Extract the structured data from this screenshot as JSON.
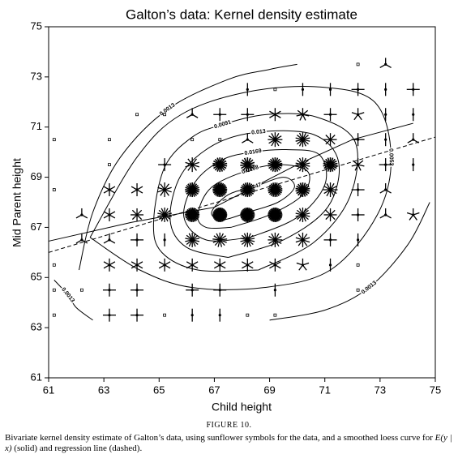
{
  "chart_data": {
    "type": "sunflower",
    "title": "Galton’s data: Kernel density estimate",
    "xlabel": "Child height",
    "ylabel": "Mid Parent height",
    "xlim": [
      61,
      75
    ],
    "xticks": [
      61,
      63,
      65,
      67,
      69,
      71,
      73,
      75
    ],
    "ylim": [
      61,
      75
    ],
    "yticks": [
      61,
      63,
      65,
      67,
      69,
      71,
      73,
      75
    ],
    "color": "#000000",
    "points": [
      {
        "x": 72.2,
        "y": 73.5,
        "n": 1
      },
      {
        "x": 73.2,
        "y": 73.5,
        "n": 3
      },
      {
        "x": 68.2,
        "y": 72.5,
        "n": 2
      },
      {
        "x": 69.2,
        "y": 72.5,
        "n": 1
      },
      {
        "x": 70.2,
        "y": 72.5,
        "n": 2
      },
      {
        "x": 71.2,
        "y": 72.5,
        "n": 2
      },
      {
        "x": 72.2,
        "y": 72.5,
        "n": 4
      },
      {
        "x": 73.2,
        "y": 72.5,
        "n": 2
      },
      {
        "x": 74.2,
        "y": 72.5,
        "n": 4
      },
      {
        "x": 64.2,
        "y": 71.5,
        "n": 1
      },
      {
        "x": 65.2,
        "y": 71.5,
        "n": 1
      },
      {
        "x": 66.2,
        "y": 71.5,
        "n": 3
      },
      {
        "x": 67.2,
        "y": 71.5,
        "n": 4
      },
      {
        "x": 68.2,
        "y": 71.5,
        "n": 4
      },
      {
        "x": 69.2,
        "y": 71.5,
        "n": 6
      },
      {
        "x": 70.2,
        "y": 71.5,
        "n": 7
      },
      {
        "x": 71.2,
        "y": 71.5,
        "n": 4
      },
      {
        "x": 72.2,
        "y": 71.5,
        "n": 5
      },
      {
        "x": 73.2,
        "y": 71.5,
        "n": 2
      },
      {
        "x": 74.2,
        "y": 71.5,
        "n": 2
      },
      {
        "x": 61.2,
        "y": 70.5,
        "n": 1
      },
      {
        "x": 63.2,
        "y": 70.5,
        "n": 1
      },
      {
        "x": 66.2,
        "y": 70.5,
        "n": 1
      },
      {
        "x": 67.2,
        "y": 70.5,
        "n": 1
      },
      {
        "x": 68.2,
        "y": 70.5,
        "n": 3
      },
      {
        "x": 69.2,
        "y": 70.5,
        "n": 12
      },
      {
        "x": 70.2,
        "y": 70.5,
        "n": 14
      },
      {
        "x": 71.2,
        "y": 70.5,
        "n": 8
      },
      {
        "x": 72.2,
        "y": 70.5,
        "n": 4
      },
      {
        "x": 73.2,
        "y": 70.5,
        "n": 2
      },
      {
        "x": 74.2,
        "y": 70.5,
        "n": 3
      },
      {
        "x": 63.2,
        "y": 69.5,
        "n": 1
      },
      {
        "x": 65.2,
        "y": 69.5,
        "n": 4
      },
      {
        "x": 66.2,
        "y": 69.5,
        "n": 10
      },
      {
        "x": 67.2,
        "y": 69.5,
        "n": 18
      },
      {
        "x": 68.2,
        "y": 69.5,
        "n": 15
      },
      {
        "x": 69.2,
        "y": 69.5,
        "n": 18
      },
      {
        "x": 70.2,
        "y": 69.5,
        "n": 14
      },
      {
        "x": 71.2,
        "y": 69.5,
        "n": 18
      },
      {
        "x": 72.2,
        "y": 69.5,
        "n": 7
      },
      {
        "x": 73.2,
        "y": 69.5,
        "n": 4
      },
      {
        "x": 74.2,
        "y": 69.5,
        "n": 2
      },
      {
        "x": 61.2,
        "y": 68.5,
        "n": 1
      },
      {
        "x": 63.2,
        "y": 68.5,
        "n": 6
      },
      {
        "x": 64.2,
        "y": 68.5,
        "n": 6
      },
      {
        "x": 65.2,
        "y": 68.5,
        "n": 10
      },
      {
        "x": 66.2,
        "y": 68.5,
        "n": 20
      },
      {
        "x": 67.2,
        "y": 68.5,
        "n": 25
      },
      {
        "x": 68.2,
        "y": 68.5,
        "n": 20
      },
      {
        "x": 69.2,
        "y": 68.5,
        "n": 22
      },
      {
        "x": 70.2,
        "y": 68.5,
        "n": 18
      },
      {
        "x": 71.2,
        "y": 68.5,
        "n": 12
      },
      {
        "x": 72.2,
        "y": 68.5,
        "n": 4
      },
      {
        "x": 73.2,
        "y": 68.5,
        "n": 3
      },
      {
        "x": 62.2,
        "y": 67.5,
        "n": 3
      },
      {
        "x": 63.2,
        "y": 67.5,
        "n": 6
      },
      {
        "x": 64.2,
        "y": 67.5,
        "n": 8
      },
      {
        "x": 65.2,
        "y": 67.5,
        "n": 14
      },
      {
        "x": 66.2,
        "y": 67.5,
        "n": 25
      },
      {
        "x": 67.2,
        "y": 67.5,
        "n": 30
      },
      {
        "x": 68.2,
        "y": 67.5,
        "n": 28
      },
      {
        "x": 69.2,
        "y": 67.5,
        "n": 28
      },
      {
        "x": 70.2,
        "y": 67.5,
        "n": 14
      },
      {
        "x": 71.2,
        "y": 67.5,
        "n": 8
      },
      {
        "x": 72.2,
        "y": 67.5,
        "n": 4
      },
      {
        "x": 73.2,
        "y": 67.5,
        "n": 3
      },
      {
        "x": 74.2,
        "y": 67.5,
        "n": 5
      },
      {
        "x": 62.2,
        "y": 66.5,
        "n": 3
      },
      {
        "x": 63.2,
        "y": 66.5,
        "n": 3
      },
      {
        "x": 64.2,
        "y": 66.5,
        "n": 4
      },
      {
        "x": 65.2,
        "y": 66.5,
        "n": 2
      },
      {
        "x": 66.2,
        "y": 66.5,
        "n": 14
      },
      {
        "x": 67.2,
        "y": 66.5,
        "n": 13
      },
      {
        "x": 68.2,
        "y": 66.5,
        "n": 14
      },
      {
        "x": 69.2,
        "y": 66.5,
        "n": 12
      },
      {
        "x": 70.2,
        "y": 66.5,
        "n": 10
      },
      {
        "x": 71.2,
        "y": 66.5,
        "n": 4
      },
      {
        "x": 72.2,
        "y": 66.5,
        "n": 2
      },
      {
        "x": 61.2,
        "y": 65.5,
        "n": 1
      },
      {
        "x": 63.2,
        "y": 65.5,
        "n": 6
      },
      {
        "x": 64.2,
        "y": 65.5,
        "n": 6
      },
      {
        "x": 65.2,
        "y": 65.5,
        "n": 6
      },
      {
        "x": 66.2,
        "y": 65.5,
        "n": 6
      },
      {
        "x": 67.2,
        "y": 65.5,
        "n": 6
      },
      {
        "x": 68.2,
        "y": 65.5,
        "n": 6
      },
      {
        "x": 69.2,
        "y": 65.5,
        "n": 6
      },
      {
        "x": 70.2,
        "y": 65.5,
        "n": 5
      },
      {
        "x": 71.2,
        "y": 65.5,
        "n": 2
      },
      {
        "x": 72.2,
        "y": 65.5,
        "n": 1
      },
      {
        "x": 61.2,
        "y": 64.5,
        "n": 1
      },
      {
        "x": 62.2,
        "y": 64.5,
        "n": 1
      },
      {
        "x": 63.2,
        "y": 64.5,
        "n": 4
      },
      {
        "x": 64.2,
        "y": 64.5,
        "n": 4
      },
      {
        "x": 66.2,
        "y": 64.5,
        "n": 4
      },
      {
        "x": 67.2,
        "y": 64.5,
        "n": 4
      },
      {
        "x": 69.2,
        "y": 64.5,
        "n": 2
      },
      {
        "x": 72.2,
        "y": 64.5,
        "n": 1
      },
      {
        "x": 61.2,
        "y": 63.5,
        "n": 1
      },
      {
        "x": 63.2,
        "y": 63.5,
        "n": 4
      },
      {
        "x": 64.2,
        "y": 63.5,
        "n": 4
      },
      {
        "x": 65.2,
        "y": 63.5,
        "n": 1
      },
      {
        "x": 66.2,
        "y": 63.5,
        "n": 2
      },
      {
        "x": 67.2,
        "y": 63.5,
        "n": 2
      },
      {
        "x": 68.2,
        "y": 63.5,
        "n": 1
      },
      {
        "x": 69.2,
        "y": 63.5,
        "n": 1
      }
    ],
    "contours": [
      {
        "level": 0.0247,
        "x": [
          68.2,
          67.3,
          66.9,
          67.5,
          68.4,
          69.5,
          69.9,
          69.3,
          68.2
        ],
        "y": [
          67.6,
          67.3,
          67.6,
          68.3,
          68.6,
          69.0,
          68.6,
          68.0,
          67.6
        ]
      },
      {
        "level": 0.0208,
        "x": [
          67.6,
          66.7,
          66.4,
          66.9,
          68.3,
          69.5,
          70.4,
          70.2,
          69.0,
          67.6
        ],
        "y": [
          67.0,
          67.0,
          67.5,
          68.6,
          69.3,
          69.5,
          69.2,
          68.3,
          67.5,
          67.0
        ]
      },
      {
        "level": 0.0169,
        "x": [
          68.3,
          66.7,
          65.9,
          66.3,
          67.3,
          68.4,
          69.6,
          70.8,
          71.0,
          70.0,
          68.3
        ],
        "y": [
          66.6,
          66.5,
          67.4,
          68.8,
          69.7,
          70.0,
          70.1,
          69.9,
          68.7,
          67.4,
          66.6
        ]
      },
      {
        "level": 0.013,
        "x": [
          67.5,
          66.0,
          65.4,
          65.8,
          67.0,
          68.6,
          70.6,
          71.5,
          71.1,
          69.5,
          67.5
        ],
        "y": [
          65.8,
          66.2,
          67.3,
          69.1,
          70.3,
          70.8,
          70.7,
          69.6,
          67.8,
          66.5,
          65.8
        ]
      },
      {
        "level": 0.0091,
        "x": [
          68.6,
          66.4,
          65.1,
          64.8,
          65.2,
          66.2,
          67.3,
          68.9,
          70.7,
          72.1,
          71.9,
          70.6,
          68.6
        ],
        "y": [
          65.3,
          65.3,
          66.0,
          67.2,
          69.4,
          70.6,
          71.1,
          71.5,
          71.4,
          70.4,
          68.2,
          66.4,
          65.3
        ]
      },
      {
        "level": 0.0052,
        "x": [
          62.5,
          64.2,
          65.8,
          68.2,
          70.8,
          72.8,
          73.4,
          72.9,
          71.2,
          68.8,
          66.2,
          64.3,
          62.5
        ],
        "y": [
          66.6,
          69.8,
          71.5,
          72.4,
          72.6,
          72.0,
          69.8,
          67.5,
          65.3,
          64.6,
          64.6,
          65.3,
          66.6
        ]
      },
      {
        "level": 0.0013,
        "x": [
          62.1,
          62.6,
          63.6,
          65.3,
          67.5,
          69.0,
          70.0,
          null,
          69.0,
          71.0,
          72.6,
          74.0,
          74.8,
          null,
          61.2,
          61.7,
          62.0,
          62.6
        ],
        "y": [
          65.3,
          67.6,
          69.8,
          71.7,
          72.9,
          73.3,
          73.5,
          null,
          63.3,
          63.7,
          64.6,
          66.3,
          68.0,
          null,
          64.9,
          64.3,
          63.8,
          63.3
        ]
      }
    ],
    "lines": [
      {
        "style": "solid",
        "x": [
          61,
          64,
          67,
          70,
          72,
          74.2
        ],
        "y": [
          66.45,
          67.2,
          67.8,
          69.5,
          70.5,
          71.15
        ]
      },
      {
        "style": "dashed",
        "x": [
          61,
          75
        ],
        "y": [
          66.0,
          70.6
        ]
      }
    ]
  },
  "caption": {
    "figure": "FIGURE 10.",
    "lead": "Bivariate kernel density estimate of Galton’s data, using sunflower symbols for the data, and a smoothed loess curve for",
    "math": "E(y | x)",
    "tail": "(solid) and regression line (dashed)."
  }
}
